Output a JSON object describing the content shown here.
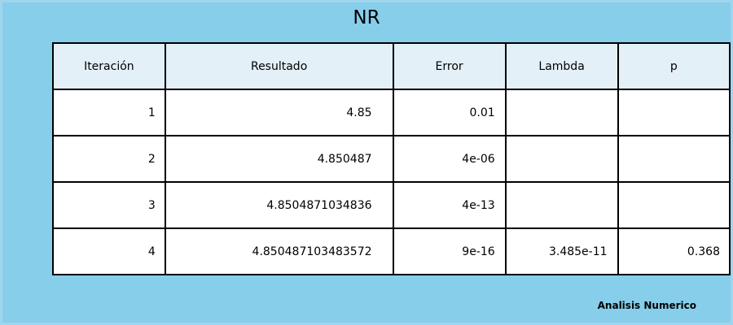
{
  "title": "NR",
  "table": {
    "headers": {
      "iteration": "Iteración",
      "result": "Resultado",
      "error": "Error",
      "lambda": "Lambda",
      "p": "p"
    },
    "rows": [
      {
        "iteration": "1",
        "result": "4.85",
        "error": "0.01",
        "lambda": "",
        "p": ""
      },
      {
        "iteration": "2",
        "result": "4.850487",
        "error": "4e-06",
        "lambda": "",
        "p": ""
      },
      {
        "iteration": "3",
        "result": "4.8504871034836",
        "error": "4e-13",
        "lambda": "",
        "p": ""
      },
      {
        "iteration": "4",
        "result": "4.850487103483572",
        "error": "9e-16",
        "lambda": "3.485e-11",
        "p": "0.368"
      }
    ]
  },
  "footer": "Analisis Numerico"
}
